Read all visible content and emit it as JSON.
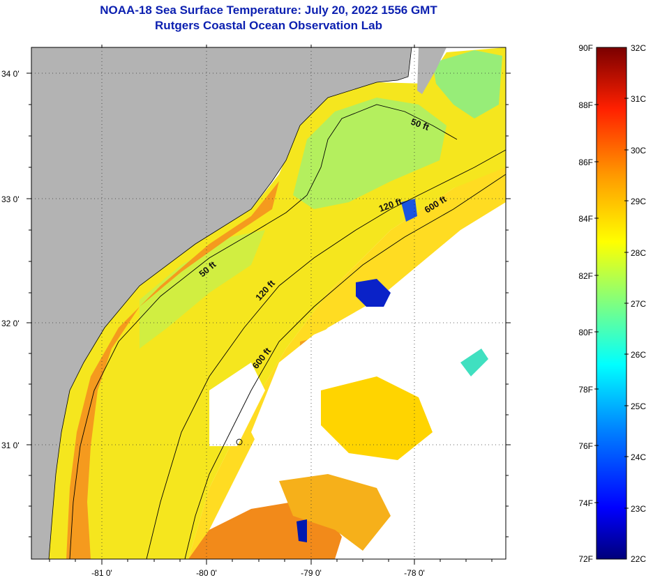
{
  "title": {
    "line1": "NOAA-18 Sea Surface Temperature:  July 20, 2022 1556 GMT",
    "line2": "Rutgers Coastal Ocean Observation Lab"
  },
  "map": {
    "lat_ticks": [
      "34 0'",
      "33 0'",
      "32 0'",
      "31 0'"
    ],
    "lon_ticks": [
      "-81 0'",
      "-80 0'",
      "-79 0'",
      "-78 0'"
    ],
    "contours": [
      {
        "label": "50 ft"
      },
      {
        "label": "50 ft"
      },
      {
        "label": "120 ft"
      },
      {
        "label": "120 ft"
      },
      {
        "label": "600 ft"
      },
      {
        "label": "600 ft"
      }
    ],
    "colors": {
      "land": "#b3b3b3",
      "no_data": "#ffffff"
    }
  },
  "colorbar": {
    "fahrenheit_labels": [
      "90F",
      "88F",
      "86F",
      "84F",
      "82F",
      "80F",
      "78F",
      "76F",
      "74F",
      "72F"
    ],
    "celsius_labels": [
      "32C",
      "31C",
      "30C",
      "29C",
      "28C",
      "27C",
      "26C",
      "25C",
      "24C",
      "23C",
      "22C"
    ],
    "range_f": [
      72,
      90
    ],
    "range_c": [
      22,
      32
    ]
  }
}
